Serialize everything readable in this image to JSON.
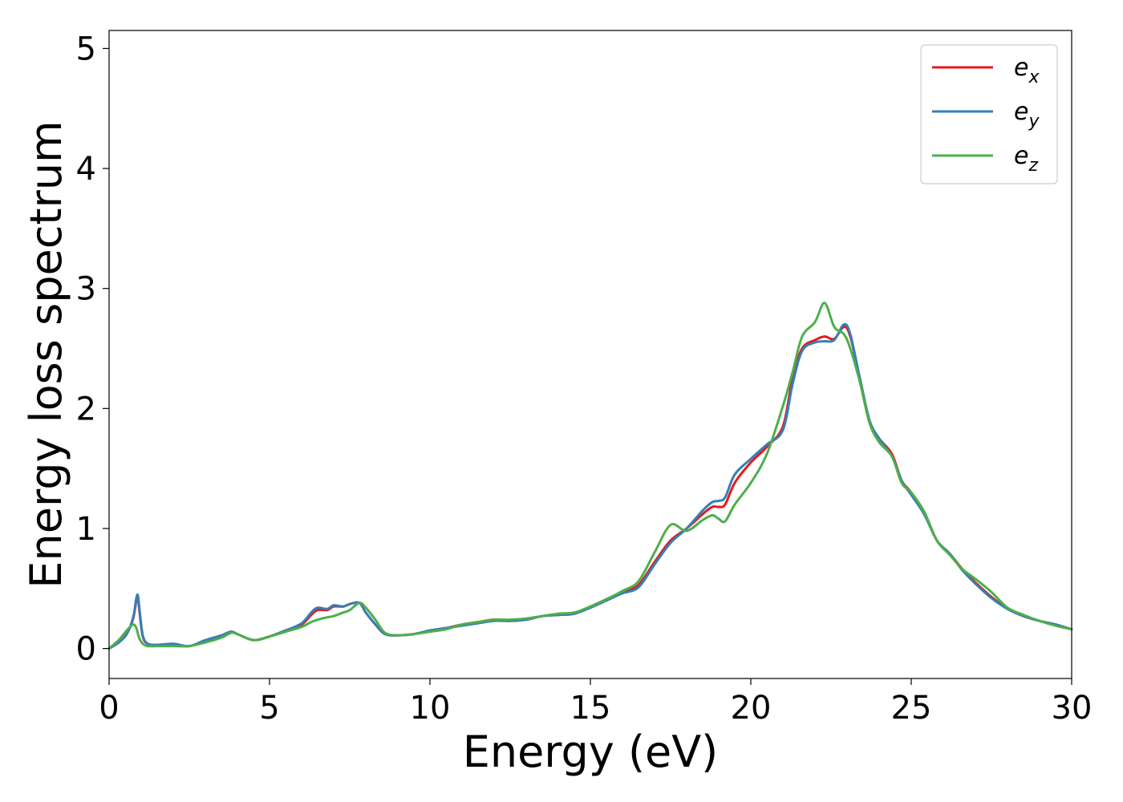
{
  "chart_data": {
    "type": "line",
    "xlabel": "Energy (eV)",
    "ylabel": "Energy loss spectrum",
    "xlim": [
      0,
      30
    ],
    "ylim": [
      -0.25,
      5.15
    ],
    "xticks": [
      0,
      5,
      10,
      15,
      20,
      25,
      30
    ],
    "yticks": [
      0,
      1,
      2,
      3,
      4,
      5
    ],
    "grid": false,
    "legend_position": "top-right",
    "series": [
      {
        "name": "e_x",
        "legend_base": "e",
        "legend_sub": "x",
        "color": "#e41a1c",
        "x": [
          0,
          0.3,
          0.55,
          0.75,
          0.85,
          0.9,
          0.95,
          1.05,
          1.2,
          1.5,
          2.0,
          2.5,
          3.0,
          3.5,
          3.8,
          4.0,
          4.5,
          5.0,
          5.5,
          6.0,
          6.3,
          6.5,
          6.8,
          7.0,
          7.3,
          7.5,
          7.8,
          8.0,
          8.3,
          8.6,
          9.0,
          9.5,
          10.0,
          10.5,
          11.0,
          11.5,
          12.0,
          12.5,
          13.0,
          13.5,
          14.0,
          14.5,
          15.0,
          15.5,
          16.0,
          16.5,
          17.0,
          17.5,
          18.0,
          18.5,
          18.8,
          19.0,
          19.2,
          19.5,
          20.0,
          20.5,
          21.0,
          21.3,
          21.6,
          22.0,
          22.3,
          22.6,
          22.9,
          23.1,
          23.4,
          23.7,
          24.0,
          24.4,
          24.7,
          25.0,
          25.4,
          25.8,
          26.2,
          26.6,
          27.0,
          27.5,
          28.0,
          28.5,
          29.0,
          29.5,
          30.0
        ],
        "y": [
          0,
          0.05,
          0.12,
          0.25,
          0.4,
          0.42,
          0.3,
          0.1,
          0.04,
          0.03,
          0.03,
          0.02,
          0.06,
          0.1,
          0.14,
          0.12,
          0.07,
          0.1,
          0.15,
          0.2,
          0.28,
          0.32,
          0.32,
          0.35,
          0.35,
          0.37,
          0.38,
          0.3,
          0.2,
          0.12,
          0.11,
          0.12,
          0.15,
          0.17,
          0.2,
          0.22,
          0.24,
          0.23,
          0.24,
          0.27,
          0.28,
          0.29,
          0.35,
          0.41,
          0.47,
          0.53,
          0.72,
          0.9,
          1.0,
          1.12,
          1.18,
          1.18,
          1.2,
          1.38,
          1.55,
          1.68,
          1.85,
          2.25,
          2.5,
          2.57,
          2.6,
          2.58,
          2.68,
          2.6,
          2.25,
          1.9,
          1.75,
          1.62,
          1.4,
          1.3,
          1.14,
          0.9,
          0.79,
          0.66,
          0.55,
          0.43,
          0.33,
          0.27,
          0.23,
          0.2,
          0.16
        ]
      },
      {
        "name": "e_y",
        "legend_base": "e",
        "legend_sub": "y",
        "color": "#377eb8",
        "x": [
          0,
          0.3,
          0.55,
          0.75,
          0.85,
          0.9,
          0.95,
          1.05,
          1.2,
          1.5,
          2.0,
          2.5,
          3.0,
          3.5,
          3.8,
          4.0,
          4.5,
          5.0,
          5.5,
          6.0,
          6.3,
          6.5,
          6.8,
          7.0,
          7.3,
          7.5,
          7.8,
          8.0,
          8.3,
          8.6,
          9.0,
          9.5,
          10.0,
          10.5,
          11.0,
          11.5,
          12.0,
          12.5,
          13.0,
          13.5,
          14.0,
          14.5,
          15.0,
          15.5,
          16.0,
          16.5,
          17.0,
          17.5,
          18.0,
          18.5,
          18.8,
          19.0,
          19.2,
          19.5,
          20.0,
          20.5,
          21.0,
          21.3,
          21.6,
          22.0,
          22.3,
          22.6,
          22.9,
          23.1,
          23.4,
          23.7,
          24.0,
          24.4,
          24.7,
          25.0,
          25.4,
          25.8,
          26.2,
          26.6,
          27.0,
          27.5,
          28.0,
          28.5,
          29.0,
          29.5,
          30.0
        ],
        "y": [
          0,
          0.05,
          0.12,
          0.26,
          0.42,
          0.44,
          0.32,
          0.11,
          0.04,
          0.03,
          0.04,
          0.02,
          0.07,
          0.11,
          0.14,
          0.12,
          0.07,
          0.1,
          0.15,
          0.21,
          0.3,
          0.34,
          0.33,
          0.36,
          0.35,
          0.37,
          0.38,
          0.3,
          0.2,
          0.12,
          0.11,
          0.12,
          0.15,
          0.17,
          0.19,
          0.21,
          0.23,
          0.23,
          0.24,
          0.27,
          0.28,
          0.29,
          0.34,
          0.4,
          0.46,
          0.51,
          0.7,
          0.88,
          1.0,
          1.15,
          1.22,
          1.23,
          1.26,
          1.45,
          1.58,
          1.7,
          1.82,
          2.2,
          2.48,
          2.55,
          2.56,
          2.57,
          2.7,
          2.62,
          2.25,
          1.9,
          1.75,
          1.6,
          1.4,
          1.28,
          1.12,
          0.9,
          0.79,
          0.65,
          0.54,
          0.42,
          0.33,
          0.27,
          0.23,
          0.2,
          0.16
        ]
      },
      {
        "name": "e_z",
        "legend_base": "e",
        "legend_sub": "z",
        "color": "#4daf4a",
        "x": [
          0,
          0.3,
          0.55,
          0.75,
          0.85,
          0.9,
          0.95,
          1.05,
          1.2,
          1.5,
          2.0,
          2.5,
          3.0,
          3.5,
          3.8,
          4.0,
          4.5,
          5.0,
          5.5,
          6.0,
          6.3,
          6.5,
          6.8,
          7.0,
          7.3,
          7.5,
          7.8,
          8.0,
          8.3,
          8.6,
          9.0,
          9.5,
          10.0,
          10.5,
          11.0,
          11.5,
          12.0,
          12.5,
          13.0,
          13.5,
          14.0,
          14.5,
          15.0,
          15.5,
          16.0,
          16.5,
          17.0,
          17.5,
          18.0,
          18.5,
          18.8,
          19.0,
          19.2,
          19.5,
          20.0,
          20.5,
          21.0,
          21.3,
          21.6,
          22.0,
          22.3,
          22.6,
          22.9,
          23.1,
          23.4,
          23.7,
          24.0,
          24.4,
          24.7,
          25.0,
          25.4,
          25.8,
          26.2,
          26.6,
          27.0,
          27.5,
          28.0,
          28.5,
          29.0,
          29.5,
          30.0
        ],
        "y": [
          0,
          0.07,
          0.15,
          0.2,
          0.17,
          0.12,
          0.08,
          0.04,
          0.02,
          0.02,
          0.02,
          0.02,
          0.05,
          0.09,
          0.13,
          0.12,
          0.07,
          0.1,
          0.14,
          0.18,
          0.22,
          0.24,
          0.26,
          0.27,
          0.3,
          0.32,
          0.38,
          0.34,
          0.24,
          0.13,
          0.11,
          0.12,
          0.14,
          0.16,
          0.2,
          0.22,
          0.24,
          0.24,
          0.25,
          0.27,
          0.29,
          0.3,
          0.35,
          0.41,
          0.48,
          0.56,
          0.8,
          1.03,
          0.98,
          1.07,
          1.11,
          1.08,
          1.06,
          1.2,
          1.38,
          1.62,
          2.02,
          2.3,
          2.6,
          2.72,
          2.88,
          2.68,
          2.62,
          2.5,
          2.22,
          1.88,
          1.72,
          1.6,
          1.38,
          1.3,
          1.14,
          0.9,
          0.78,
          0.66,
          0.58,
          0.47,
          0.34,
          0.28,
          0.23,
          0.19,
          0.16
        ]
      }
    ]
  }
}
